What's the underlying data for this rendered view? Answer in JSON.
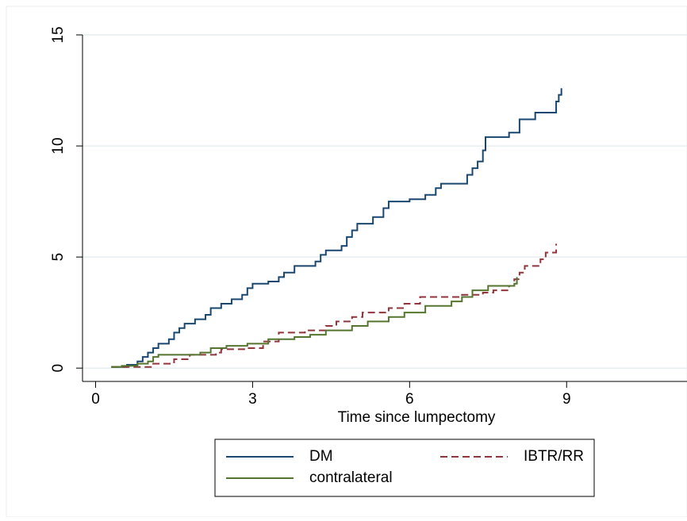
{
  "chart_data": {
    "type": "step",
    "xlabel": "Time since lumpectomy",
    "xlim": [
      -0.25,
      11.3
    ],
    "xticks": [
      0,
      3,
      6,
      9
    ],
    "ylim": [
      -0.6,
      15
    ],
    "yticks": [
      0,
      5,
      10,
      15
    ],
    "grid": true,
    "legend": "bottom",
    "series": [
      {
        "name": "DM",
        "color": "#1a476f",
        "dash": false,
        "x": [
          0.3,
          0.6,
          0.8,
          0.9,
          1.0,
          1.1,
          1.2,
          1.4,
          1.5,
          1.6,
          1.7,
          1.9,
          2.1,
          2.2,
          2.4,
          2.6,
          2.8,
          2.9,
          3.0,
          3.3,
          3.5,
          3.6,
          3.8,
          4.2,
          4.3,
          4.4,
          4.7,
          4.8,
          4.9,
          5.0,
          5.3,
          5.5,
          5.6,
          6.0,
          6.3,
          6.5,
          6.6,
          7.1,
          7.2,
          7.3,
          7.4,
          7.45,
          7.9,
          8.1,
          8.4,
          8.8,
          8.85,
          8.9
        ],
        "values": [
          0.05,
          0.15,
          0.3,
          0.5,
          0.7,
          0.9,
          1.1,
          1.3,
          1.6,
          1.8,
          2.0,
          2.2,
          2.4,
          2.7,
          2.9,
          3.1,
          3.3,
          3.6,
          3.8,
          3.9,
          4.1,
          4.3,
          4.6,
          4.8,
          5.1,
          5.3,
          5.5,
          5.9,
          6.2,
          6.5,
          6.8,
          7.2,
          7.5,
          7.6,
          7.8,
          8.1,
          8.3,
          8.7,
          9.0,
          9.3,
          9.8,
          10.4,
          10.6,
          11.2,
          11.5,
          12.0,
          12.3,
          12.6
        ]
      },
      {
        "name": "IBTR/RR",
        "color": "#90353b",
        "dash": true,
        "x": [
          0.3,
          1.1,
          1.5,
          1.8,
          2.3,
          2.4,
          2.9,
          3.2,
          3.5,
          4.0,
          4.4,
          4.6,
          4.9,
          5.1,
          5.6,
          5.9,
          6.2,
          7.0,
          7.4,
          7.6,
          7.9,
          8.0,
          8.1,
          8.2,
          8.5,
          8.6,
          8.8
        ],
        "values": [
          0.05,
          0.2,
          0.4,
          0.6,
          0.7,
          0.85,
          0.9,
          1.2,
          1.6,
          1.7,
          1.9,
          2.1,
          2.3,
          2.5,
          2.7,
          2.9,
          3.2,
          3.3,
          3.4,
          3.5,
          3.7,
          4.0,
          4.3,
          4.6,
          4.9,
          5.2,
          5.6
        ]
      },
      {
        "name": "contralateral",
        "color": "#55752f",
        "dash": false,
        "x": [
          0.3,
          0.5,
          0.8,
          1.0,
          1.1,
          1.2,
          2.0,
          2.2,
          2.5,
          2.9,
          3.3,
          3.8,
          4.1,
          4.4,
          4.9,
          5.2,
          5.6,
          5.9,
          6.3,
          6.8,
          7.0,
          7.2,
          7.5,
          8.0,
          8.05
        ],
        "values": [
          0.05,
          0.1,
          0.2,
          0.3,
          0.5,
          0.6,
          0.7,
          0.9,
          1.0,
          1.1,
          1.3,
          1.4,
          1.5,
          1.7,
          1.9,
          2.1,
          2.3,
          2.5,
          2.8,
          3.0,
          3.2,
          3.5,
          3.7,
          3.8,
          4.1
        ]
      }
    ]
  }
}
